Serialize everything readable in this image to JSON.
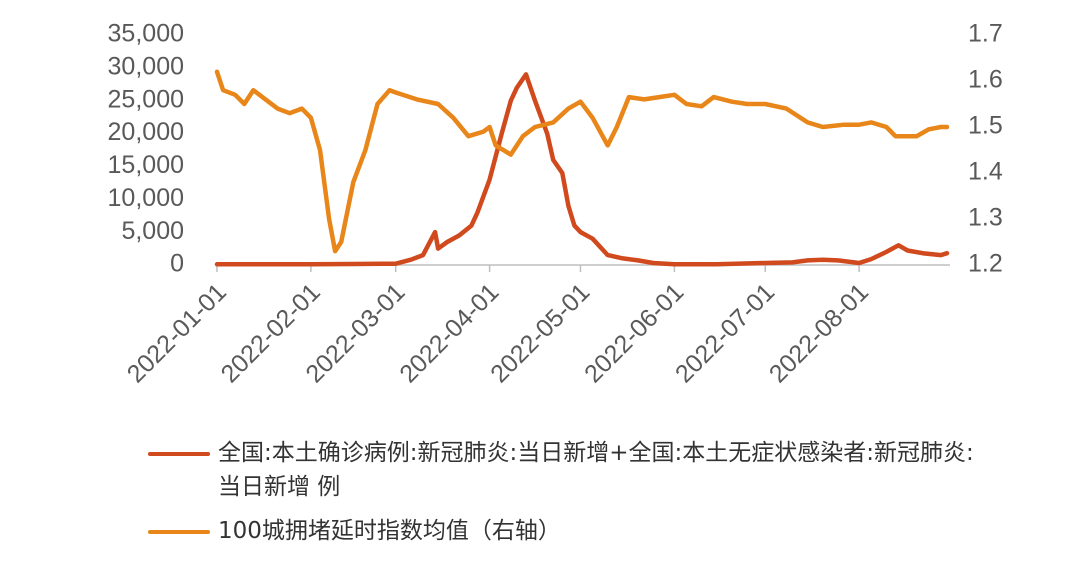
{
  "chart_data": {
    "type": "line",
    "xticks": [
      "2022-01-01",
      "2022-02-01",
      "2022-03-01",
      "2022-04-01",
      "2022-05-01",
      "2022-06-01",
      "2022-07-01",
      "2022-08-01"
    ],
    "xlim": [
      "2022-01-01",
      "2022-08-31"
    ],
    "ylim": [
      0,
      35000
    ],
    "yticks": [
      0,
      {
        "value": 5000,
        "label": "5,000"
      },
      {
        "value": 10000,
        "label": "10,000"
      },
      {
        "value": 15000,
        "label": "15,000"
      },
      {
        "value": 20000,
        "label": "20,000"
      },
      {
        "value": 25000,
        "label": "25,000"
      },
      {
        "value": 30000,
        "label": "30,000"
      },
      {
        "value": 35000,
        "label": "35,000"
      }
    ],
    "y2lim": [
      1.2,
      1.7
    ],
    "y2ticks": [
      1.2,
      1.3,
      1.4,
      1.5,
      1.6,
      1.7
    ],
    "series": [
      {
        "name": "全国:本土确诊病例:新冠肺炎:当日新增+全国:本土无症状感染者:新冠肺炎:当日新增 例",
        "color": "#d04a1e",
        "x": [
          "2022-01-01",
          "2022-01-15",
          "2022-02-01",
          "2022-02-15",
          "2022-03-01",
          "2022-03-06",
          "2022-03-10",
          "2022-03-14",
          "2022-03-15",
          "2022-03-18",
          "2022-03-22",
          "2022-03-26",
          "2022-03-28",
          "2022-04-01",
          "2022-04-05",
          "2022-04-08",
          "2022-04-10",
          "2022-04-13",
          "2022-04-16",
          "2022-04-20",
          "2022-04-22",
          "2022-04-25",
          "2022-04-27",
          "2022-04-29",
          "2022-05-01",
          "2022-05-05",
          "2022-05-10",
          "2022-05-15",
          "2022-05-20",
          "2022-05-25",
          "2022-06-01",
          "2022-06-15",
          "2022-07-01",
          "2022-07-10",
          "2022-07-15",
          "2022-07-20",
          "2022-07-25",
          "2022-08-01",
          "2022-08-05",
          "2022-08-10",
          "2022-08-14",
          "2022-08-17",
          "2022-08-22",
          "2022-08-28",
          "2022-08-30"
        ],
        "values": [
          100,
          100,
          100,
          150,
          200,
          800,
          1500,
          5000,
          2500,
          3500,
          4500,
          6000,
          8000,
          13000,
          20000,
          25000,
          27000,
          29000,
          25000,
          20000,
          16000,
          14000,
          9000,
          6000,
          5000,
          4000,
          1500,
          1000,
          700,
          300,
          100,
          100,
          300,
          400,
          700,
          800,
          700,
          300,
          900,
          2000,
          3000,
          2200,
          1800,
          1500,
          1800
        ]
      },
      {
        "name": "100城拥堵延时指数均值（右轴）",
        "color": "#e8861a",
        "axis": "y2",
        "x": [
          "2022-01-01",
          "2022-01-03",
          "2022-01-07",
          "2022-01-10",
          "2022-01-13",
          "2022-01-17",
          "2022-01-21",
          "2022-01-25",
          "2022-01-29",
          "2022-02-01",
          "2022-02-04",
          "2022-02-07",
          "2022-02-09",
          "2022-02-11",
          "2022-02-15",
          "2022-02-19",
          "2022-02-23",
          "2022-02-27",
          "2022-03-01",
          "2022-03-08",
          "2022-03-15",
          "2022-03-20",
          "2022-03-25",
          "2022-03-30",
          "2022-04-01",
          "2022-04-03",
          "2022-04-08",
          "2022-04-12",
          "2022-04-16",
          "2022-04-22",
          "2022-04-27",
          "2022-05-01",
          "2022-05-05",
          "2022-05-10",
          "2022-05-13",
          "2022-05-17",
          "2022-05-22",
          "2022-05-27",
          "2022-06-01",
          "2022-06-05",
          "2022-06-10",
          "2022-06-14",
          "2022-06-20",
          "2022-06-25",
          "2022-07-01",
          "2022-07-08",
          "2022-07-15",
          "2022-07-20",
          "2022-07-27",
          "2022-08-01",
          "2022-08-05",
          "2022-08-10",
          "2022-08-13",
          "2022-08-20",
          "2022-08-24",
          "2022-08-28",
          "2022-08-30"
        ],
        "values": [
          1.62,
          1.58,
          1.57,
          1.55,
          1.58,
          1.56,
          1.54,
          1.53,
          1.54,
          1.52,
          1.45,
          1.3,
          1.23,
          1.25,
          1.38,
          1.45,
          1.55,
          1.58,
          1.575,
          1.56,
          1.55,
          1.52,
          1.48,
          1.49,
          1.5,
          1.46,
          1.44,
          1.48,
          1.5,
          1.51,
          1.54,
          1.555,
          1.52,
          1.46,
          1.5,
          1.565,
          1.56,
          1.565,
          1.57,
          1.55,
          1.545,
          1.565,
          1.555,
          1.55,
          1.55,
          1.54,
          1.51,
          1.5,
          1.505,
          1.505,
          1.51,
          1.5,
          1.48,
          1.48,
          1.495,
          1.5,
          1.5
        ]
      }
    ]
  }
}
